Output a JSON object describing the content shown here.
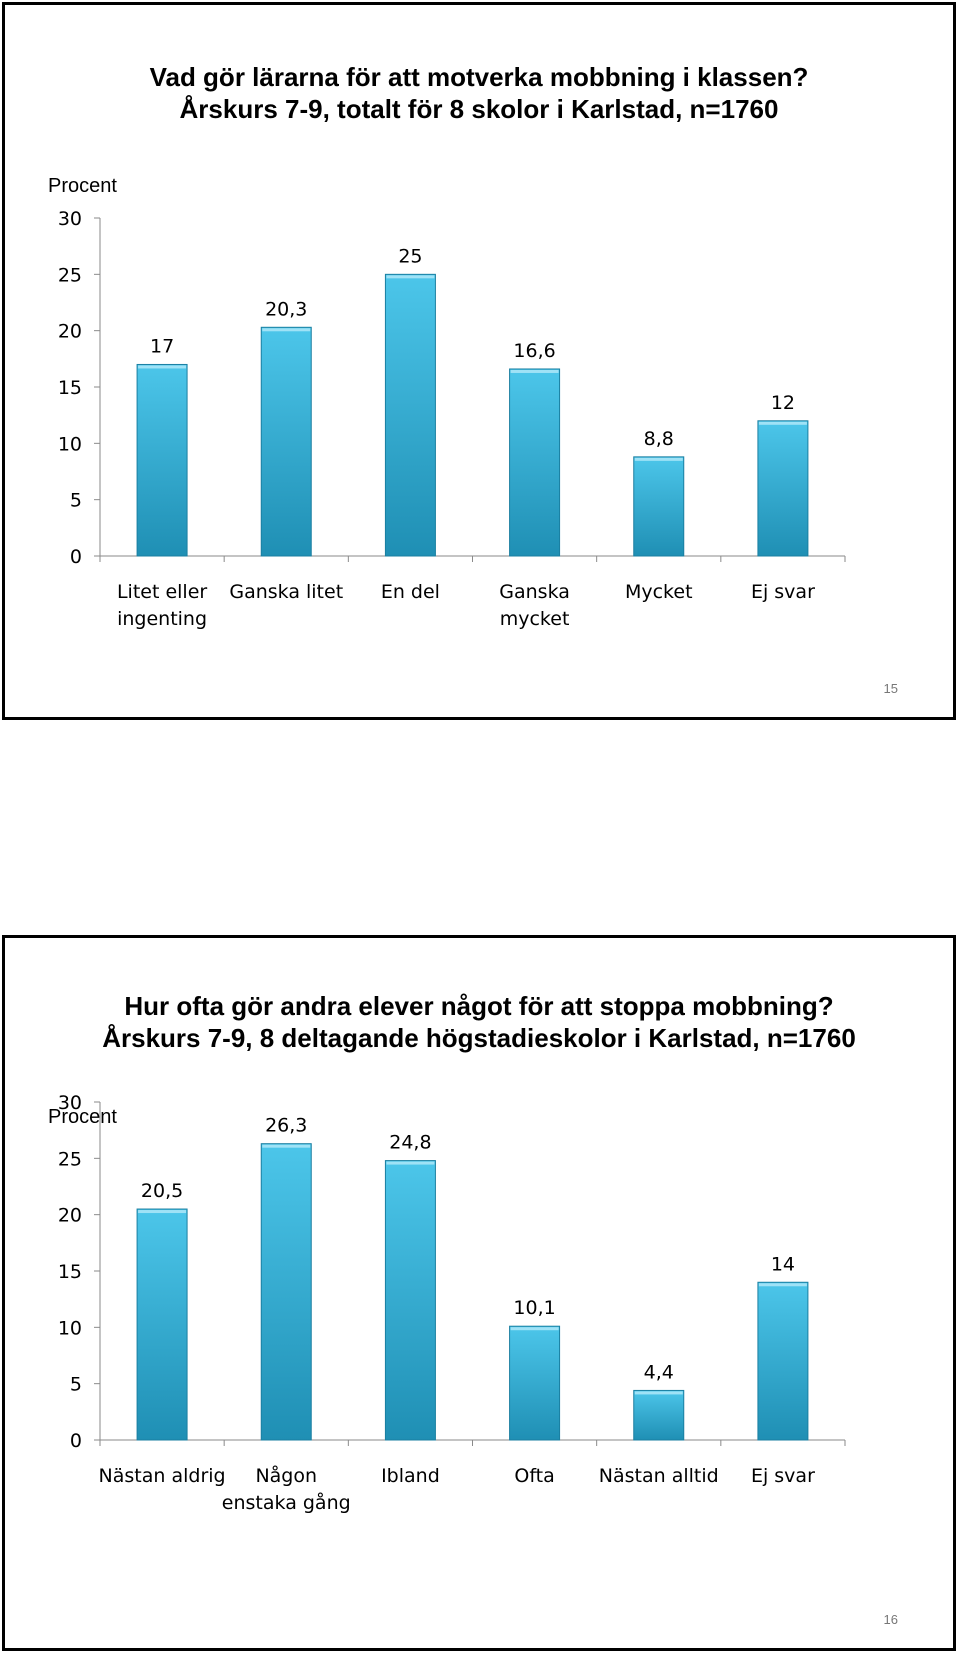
{
  "slides": [
    {
      "title_line1": "Vad gör lärarna för att motverka mobbning i klassen?",
      "title_line2": "Årskurs 7-9, totalt för 8 skolor i Karlstad, n=1760",
      "page_number": "15"
    },
    {
      "title_line1": "Hur ofta gör andra elever något för att stoppa mobbning?",
      "title_line2": "Årskurs 7-9, 8 deltagande högstadieskolor i Karlstad, n=1760",
      "page_number": "16"
    }
  ],
  "chart_data": [
    {
      "type": "bar",
      "title": "Vad gör lärarna för att motverka mobbning i klassen? Årskurs 7-9, totalt för 8 skolor i Karlstad, n=1760",
      "ylabel": "Procent",
      "xlabel": "",
      "categories": [
        [
          "Litet eller",
          "ingenting"
        ],
        [
          "Ganska litet"
        ],
        [
          "En del"
        ],
        [
          "Ganska",
          "mycket"
        ],
        [
          "Mycket"
        ],
        [
          "Ej svar"
        ]
      ],
      "values": [
        17,
        20.3,
        25,
        16.6,
        8.8,
        12
      ],
      "value_labels": [
        "17",
        "20,3",
        "25",
        "16,6",
        "8,8",
        "12"
      ],
      "ylim": [
        0,
        30
      ],
      "yticks": [
        0,
        5,
        10,
        15,
        20,
        25,
        30
      ],
      "grid": false,
      "colors": {
        "bar_top": "#4cc6ea",
        "bar_bottom": "#1f8fb4",
        "bar_edge": "#1a7fa1"
      }
    },
    {
      "type": "bar",
      "title": "Hur ofta gör andra elever något för att stoppa mobbning? Årskurs 7-9, 8 deltagande högstadieskolor i Karlstad, n=1760",
      "ylabel": "Procent",
      "xlabel": "",
      "categories": [
        [
          "Nästan aldrig"
        ],
        [
          "Någon",
          "enstaka gång"
        ],
        [
          "Ibland"
        ],
        [
          "Ofta"
        ],
        [
          "Nästan alltid"
        ],
        [
          "Ej svar"
        ]
      ],
      "values": [
        20.5,
        26.3,
        24.8,
        10.1,
        4.4,
        14
      ],
      "value_labels": [
        "20,5",
        "26,3",
        "24,8",
        "10,1",
        "4,4",
        "14"
      ],
      "ylim": [
        0,
        30
      ],
      "yticks": [
        0,
        5,
        10,
        15,
        20,
        25,
        30
      ],
      "grid": false,
      "colors": {
        "bar_top": "#4cc6ea",
        "bar_bottom": "#1f8fb4",
        "bar_edge": "#1a7fa1"
      }
    }
  ]
}
